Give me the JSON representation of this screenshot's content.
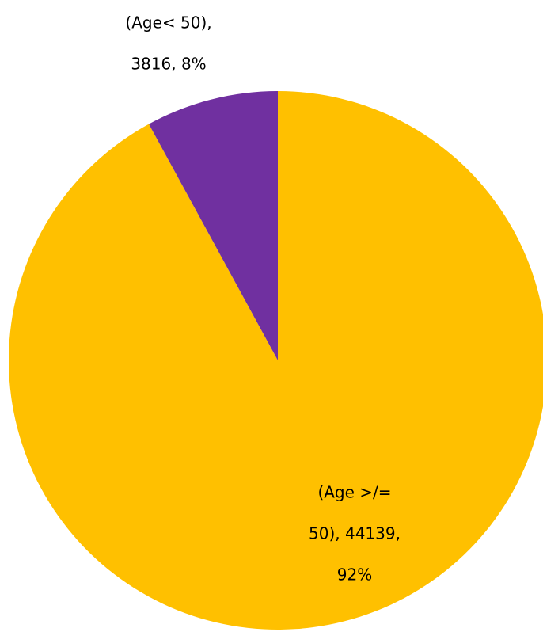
{
  "chart_data": {
    "type": "pie",
    "values": [
      44139,
      3816
    ],
    "value_labels": [
      [
        "(Age >/=",
        "50), 44139,",
        "92%"
      ],
      [
        "(Age< 50),",
        "3816, 8%"
      ]
    ],
    "colors": [
      "#FFC000",
      "#7030A0"
    ]
  }
}
